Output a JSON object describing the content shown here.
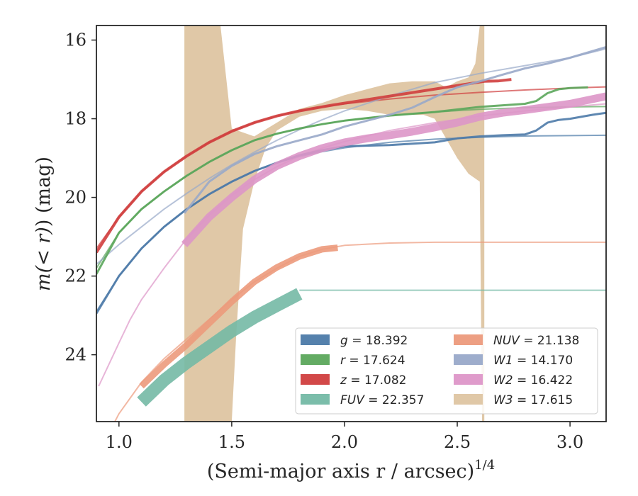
{
  "chart_data": {
    "type": "line",
    "xlabel": "(Semi-major axis r / arcsec)",
    "xlabel_power": "1/4",
    "ylabel_prefix": "m(",
    "ylabel_expr": "< r",
    "ylabel_suffix": ") (mag)",
    "xlim": [
      0.9,
      3.16
    ],
    "ylim": [
      25.7,
      15.63
    ],
    "y_inverted": true,
    "xticks": [
      1.0,
      1.5,
      2.0,
      2.5,
      3.0
    ],
    "xtick_labels": [
      "1.0",
      "1.5",
      "2.0",
      "2.5",
      "3.0"
    ],
    "yticks": [
      16,
      18,
      20,
      22,
      24
    ],
    "ytick_labels": [
      "16",
      "18",
      "20",
      "22",
      "24"
    ],
    "grid": false,
    "legend_position": "lower-right",
    "legend_columns": 2,
    "series": [
      {
        "band": "g",
        "value": "18.392",
        "color": "#4c7aa8",
        "model": {
          "x": [
            0.9,
            1.0,
            1.1,
            1.2,
            1.3,
            1.4,
            1.5,
            1.6,
            1.7,
            1.8,
            1.9,
            2.0,
            2.2,
            2.4,
            2.6,
            2.8,
            3.0,
            3.16
          ],
          "y": [
            22.9,
            22.0,
            21.3,
            20.75,
            20.3,
            19.92,
            19.6,
            19.33,
            19.12,
            18.96,
            18.84,
            18.74,
            18.6,
            18.52,
            18.47,
            18.44,
            18.43,
            18.42
          ]
        },
        "profile": {
          "x": [
            0.9,
            1.0,
            1.1,
            1.2,
            1.3,
            1.4,
            1.5,
            1.6,
            1.7,
            1.8,
            1.9,
            2.0,
            2.2,
            2.4,
            2.5,
            2.6,
            2.7,
            2.8,
            2.85,
            2.9,
            2.95,
            3.0,
            3.1,
            3.16
          ],
          "y": [
            22.95,
            22.0,
            21.3,
            20.75,
            20.3,
            19.92,
            19.6,
            19.33,
            19.12,
            18.93,
            18.8,
            18.7,
            18.67,
            18.6,
            18.5,
            18.45,
            18.42,
            18.4,
            18.3,
            18.1,
            18.03,
            18.0,
            17.9,
            17.85
          ]
        }
      },
      {
        "band": "r",
        "value": "17.624",
        "color": "#5ba65b",
        "model": {
          "x": [
            0.9,
            1.0,
            1.1,
            1.2,
            1.3,
            1.4,
            1.5,
            1.6,
            1.7,
            1.8,
            1.9,
            2.0,
            2.2,
            2.4,
            2.6,
            2.8,
            3.0,
            3.16
          ],
          "y": [
            21.8,
            20.9,
            20.3,
            19.85,
            19.45,
            19.1,
            18.8,
            18.55,
            18.38,
            18.25,
            18.14,
            18.05,
            17.92,
            17.83,
            17.76,
            17.72,
            17.7,
            17.69
          ]
        },
        "profile": {
          "x": [
            0.9,
            1.0,
            1.1,
            1.2,
            1.3,
            1.4,
            1.5,
            1.6,
            1.7,
            1.8,
            1.9,
            2.0,
            2.2,
            2.4,
            2.6,
            2.8,
            2.85,
            2.9,
            2.95,
            3.0,
            3.08
          ],
          "y": [
            21.95,
            20.9,
            20.3,
            19.85,
            19.45,
            19.1,
            18.8,
            18.55,
            18.38,
            18.25,
            18.14,
            18.05,
            17.92,
            17.83,
            17.7,
            17.62,
            17.55,
            17.35,
            17.25,
            17.22,
            17.2
          ]
        }
      },
      {
        "band": "z",
        "value": "17.082",
        "color": "#d03e3e",
        "model": {
          "x": [
            0.9,
            1.0,
            1.1,
            1.2,
            1.3,
            1.4,
            1.5,
            1.6,
            1.7,
            1.8,
            1.9,
            2.0,
            2.2,
            2.4,
            2.6,
            2.8,
            3.0,
            3.16
          ],
          "y": [
            21.3,
            20.5,
            19.85,
            19.35,
            18.95,
            18.6,
            18.32,
            18.1,
            17.93,
            17.8,
            17.7,
            17.62,
            17.5,
            17.4,
            17.33,
            17.27,
            17.22,
            17.19
          ]
        },
        "profile": {
          "x": [
            0.9,
            1.0,
            1.1,
            1.2,
            1.3,
            1.4,
            1.5,
            1.6,
            1.7,
            1.8,
            1.9,
            1.95,
            2.62,
            2.68,
            2.74
          ],
          "y": [
            21.4,
            20.5,
            19.85,
            19.35,
            18.95,
            18.6,
            18.32,
            18.1,
            17.93,
            17.8,
            17.7,
            17.65,
            17.05,
            17.04,
            17.0
          ]
        }
      },
      {
        "band": "FUV",
        "value": "22.357",
        "color": "#74b9a5",
        "model": {
          "x": [
            1.8,
            3.16
          ],
          "y": [
            22.36,
            22.36
          ]
        },
        "profile": {
          "x": [
            1.1,
            1.2,
            1.3,
            1.4,
            1.5,
            1.6,
            1.7,
            1.8
          ],
          "y": [
            25.2,
            24.65,
            24.2,
            23.8,
            23.4,
            23.05,
            22.75,
            22.45
          ]
        }
      },
      {
        "band": "NUV",
        "value": "21.138",
        "color": "#ec9a7c",
        "model": {
          "x": [
            0.9,
            1.0,
            1.1,
            1.2,
            1.3,
            1.4,
            1.5,
            1.6,
            1.7,
            1.8,
            1.9,
            2.0,
            2.2,
            2.4,
            2.6,
            2.8,
            3.0,
            3.16
          ],
          "y": [
            26.6,
            25.5,
            24.7,
            24.1,
            23.6,
            23.1,
            22.6,
            22.15,
            21.8,
            21.5,
            21.32,
            21.22,
            21.16,
            21.14,
            21.14,
            21.14,
            21.14,
            21.14
          ]
        },
        "profile": {
          "x": [
            1.1,
            1.2,
            1.3,
            1.4,
            1.5,
            1.6,
            1.7,
            1.8,
            1.9,
            1.97
          ],
          "y": [
            24.8,
            24.25,
            23.75,
            23.2,
            22.65,
            22.15,
            21.78,
            21.5,
            21.32,
            21.28
          ]
        }
      },
      {
        "band": "W1",
        "value": "14.170",
        "color": "#99a9c9",
        "model": {
          "x": [
            0.9,
            1.0,
            1.1,
            1.2,
            1.3,
            1.4,
            1.5,
            1.6,
            1.7,
            1.8,
            1.9,
            2.0,
            2.2,
            2.4,
            2.6,
            2.8,
            3.0,
            3.16
          ],
          "y": [
            21.7,
            21.2,
            20.75,
            20.3,
            19.9,
            19.52,
            19.17,
            18.85,
            18.55,
            18.28,
            18.03,
            17.8,
            17.42,
            17.08,
            16.85,
            16.65,
            16.45,
            16.22
          ]
        },
        "profile": {
          "x": [
            1.29,
            1.4,
            1.5,
            1.6,
            1.7,
            1.8,
            1.9,
            2.0,
            2.1,
            2.2,
            2.3,
            2.4,
            2.5,
            2.6,
            2.7,
            2.8,
            2.9,
            3.0,
            3.16
          ],
          "y": [
            20.4,
            19.6,
            19.2,
            18.9,
            18.7,
            18.55,
            18.4,
            18.2,
            18.05,
            17.9,
            17.72,
            17.45,
            17.2,
            17.05,
            16.88,
            16.72,
            16.6,
            16.45,
            16.18
          ]
        }
      },
      {
        "band": "W2",
        "value": "16.422",
        "color": "#dd96c8",
        "model": {
          "x": [
            0.91,
            1.0,
            1.05,
            1.1,
            1.2,
            1.3,
            1.4,
            1.5,
            1.6,
            1.7,
            1.8,
            1.9,
            2.0,
            2.2,
            2.4,
            2.6,
            2.8,
            3.0,
            3.16
          ],
          "y": [
            24.8,
            23.7,
            23.1,
            22.6,
            21.8,
            21.05,
            20.45,
            19.95,
            19.55,
            19.22,
            18.95,
            18.75,
            18.58,
            18.3,
            18.1,
            17.93,
            17.8,
            17.7,
            17.62
          ]
        },
        "profile": {
          "x": [
            1.29,
            1.4,
            1.5,
            1.6,
            1.7,
            1.8,
            1.9,
            2.0,
            2.1,
            2.2,
            2.3,
            2.4,
            2.5,
            2.6,
            2.7,
            2.8,
            2.9,
            3.0,
            3.16
          ],
          "y": [
            21.2,
            20.5,
            20.0,
            19.55,
            19.2,
            18.95,
            18.75,
            18.6,
            18.5,
            18.42,
            18.33,
            18.22,
            18.1,
            17.95,
            17.85,
            17.78,
            17.7,
            17.62,
            17.43
          ]
        }
      },
      {
        "band": "W3",
        "value": "17.615",
        "color": "#dec5a2",
        "upper_x": [
          1.29,
          1.3,
          1.45,
          1.5,
          1.6,
          1.7,
          1.8,
          1.9,
          2.0,
          2.1,
          2.2,
          2.3,
          2.4,
          2.45,
          2.5,
          2.55,
          2.58,
          2.6,
          2.61,
          2.62
        ],
        "upper_y": [
          15.63,
          15.63,
          15.63,
          18.25,
          18.45,
          18.1,
          17.75,
          17.6,
          17.4,
          17.25,
          17.1,
          17.05,
          17.05,
          17.2,
          17.05,
          16.95,
          16.6,
          15.63,
          15.63,
          15.63
        ],
        "lower_x": [
          2.62,
          2.61,
          2.6,
          2.55,
          2.5,
          2.45,
          2.4,
          2.35,
          2.3,
          2.2,
          2.1,
          2.0,
          1.9,
          1.8,
          1.7,
          1.65,
          1.6,
          1.55,
          1.52,
          1.5,
          1.45,
          1.3,
          1.29
        ],
        "lower_y": [
          25.7,
          25.7,
          19.6,
          19.4,
          19.0,
          18.5,
          18.0,
          17.9,
          17.9,
          17.9,
          17.8,
          17.75,
          17.8,
          17.95,
          18.3,
          18.75,
          19.6,
          20.8,
          23.5,
          25.7,
          25.7,
          25.7,
          25.7
        ]
      }
    ]
  }
}
